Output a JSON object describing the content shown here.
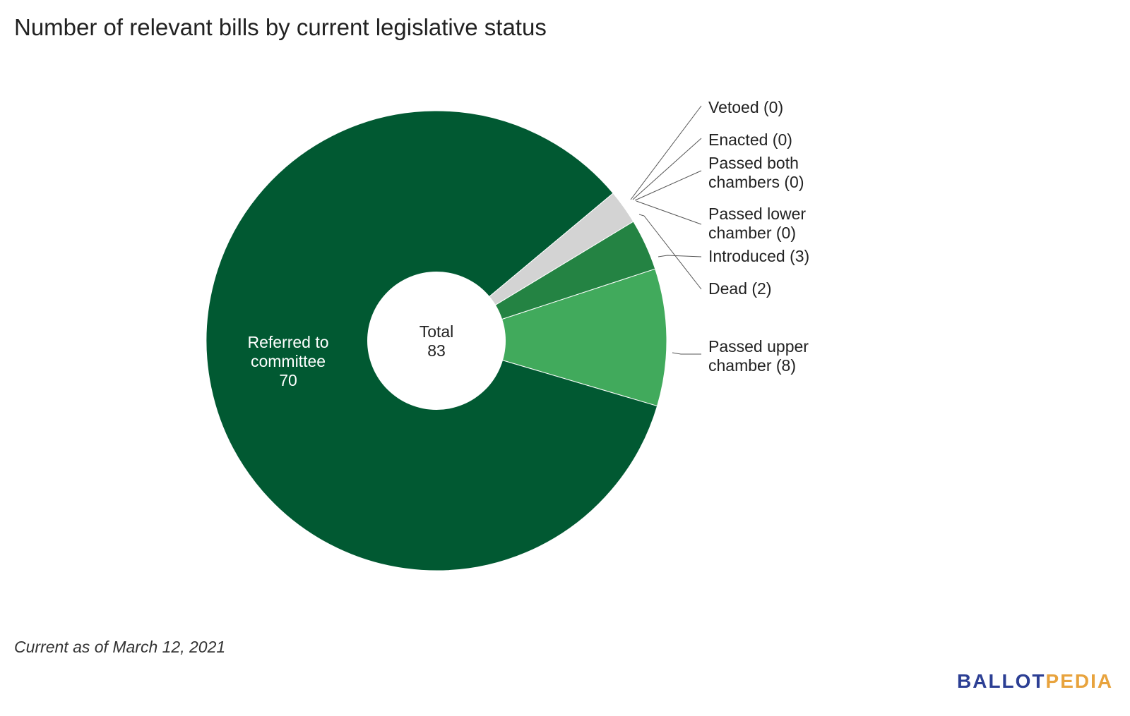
{
  "title": "Number of relevant bills by current legislative status",
  "footnote": "Current as of March 12, 2021",
  "brand": {
    "part1": "BALLOT",
    "part2": "PEDIA",
    "color1": "#2c3f94",
    "color2": "#e8a33d"
  },
  "chart_data": {
    "type": "pie",
    "donut": true,
    "center_label": "Total",
    "center_value": "83",
    "total": 83,
    "slices": [
      {
        "label": "Passed upper chamber",
        "value": 8,
        "color": "#41aa5c",
        "display": "Passed upper chamber (8)"
      },
      {
        "label": "Referred to committee",
        "value": 70,
        "color": "#015932",
        "display_line1": "Referred to",
        "display_line2": "committee",
        "display_value": "70"
      },
      {
        "label": "Vetoed",
        "value": 0,
        "color": "#cccccc",
        "display": "Vetoed (0)"
      },
      {
        "label": "Enacted",
        "value": 0,
        "color": "#cccccc",
        "display": "Enacted (0)"
      },
      {
        "label": "Passed both chambers",
        "value": 0,
        "color": "#cccccc",
        "display": "Passed both chambers (0)"
      },
      {
        "label": "Passed lower chamber",
        "value": 0,
        "color": "#cccccc",
        "display": "Passed lower chamber (0)"
      },
      {
        "label": "Dead",
        "value": 2,
        "color": "#d3d3d3",
        "display": "Dead (2)"
      },
      {
        "label": "Introduced",
        "value": 3,
        "color": "#248343",
        "display": "Introduced (3)"
      }
    ],
    "outside_labels": [
      {
        "lines": [
          "Vetoed (0)"
        ]
      },
      {
        "lines": [
          "Enacted (0)"
        ]
      },
      {
        "lines": [
          "Passed both",
          "chambers (0)"
        ]
      },
      {
        "lines": [
          "Passed lower",
          "chamber (0)"
        ]
      },
      {
        "lines": [
          "Introduced (3)"
        ]
      },
      {
        "lines": [
          "Dead (2)"
        ]
      },
      {
        "lines": [
          "Passed upper",
          "chamber (8)"
        ]
      }
    ]
  }
}
